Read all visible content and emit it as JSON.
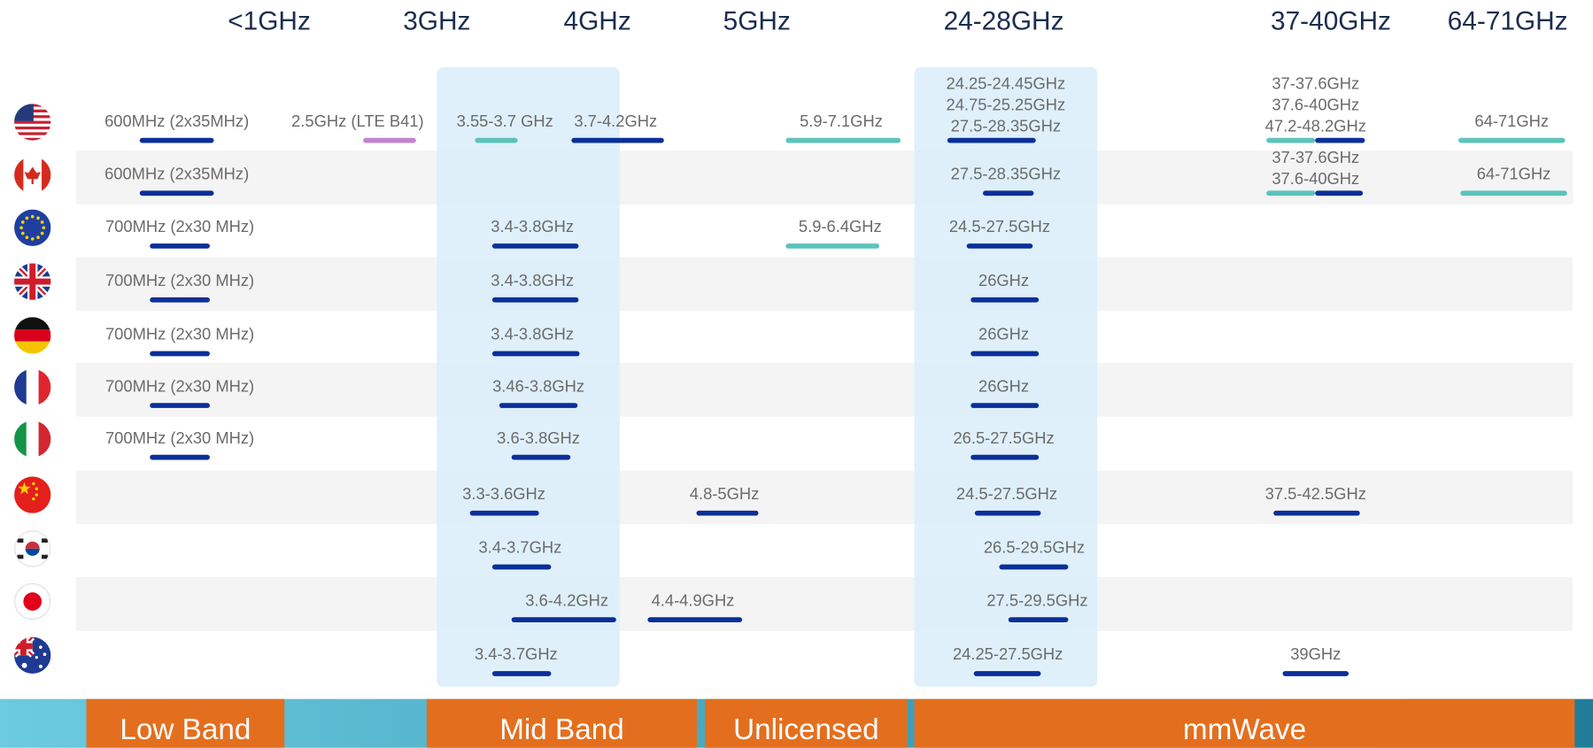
{
  "header": {
    "labels": [
      "<1GHz",
      "3GHz",
      "4GHz",
      "5GHz",
      "24-28GHz",
      "37-40GHz",
      "64-71GHz"
    ]
  },
  "rows": [
    {
      "bands": [
        {
          "text": [
            "600MHz (2x35MHz)"
          ],
          "colors": [
            "#0b2f9a"
          ]
        },
        {
          "text": [
            "2.5GHz (LTE B41)"
          ],
          "colors": [
            "#c384cf"
          ]
        },
        {
          "text": [
            "3.55-3.7 GHz"
          ],
          "colors": [
            "#5cc3bb"
          ]
        },
        {
          "text": [
            "3.7-4.2GHz"
          ],
          "colors": [
            "#0b2f9a"
          ]
        },
        {
          "text": [
            "5.9-7.1GHz"
          ],
          "colors": [
            "#5cc3bb"
          ]
        },
        {
          "text": [
            "24.25-24.45GHz",
            "24.75-25.25GHz",
            "27.5-28.35GHz"
          ],
          "colors": [
            "#0b2f9a"
          ]
        },
        {
          "text": [
            "37-37.6GHz",
            "37.6-40GHz",
            "47.2-48.2GHz"
          ],
          "colors": [
            "#5cc3bb",
            "#0b2f9a"
          ]
        },
        {
          "text": [
            "64-71GHz"
          ],
          "colors": [
            "#5cc3bb"
          ]
        }
      ]
    },
    {
      "bands": [
        {
          "text": [
            "600MHz (2x35MHz)"
          ],
          "colors": [
            "#0b2f9a"
          ]
        },
        {
          "text": [
            "27.5-28.35GHz"
          ],
          "colors": [
            "#0b2f9a"
          ]
        },
        {
          "text": [
            "37-37.6GHz",
            "37.6-40GHz"
          ],
          "colors": [
            "#5cc3bb",
            "#0b2f9a"
          ]
        },
        {
          "text": [
            "64-71GHz"
          ],
          "colors": [
            "#5cc3bb"
          ]
        }
      ]
    },
    {
      "bands": [
        {
          "text": [
            "700MHz (2x30 MHz)"
          ],
          "colors": [
            "#0b2f9a"
          ]
        },
        {
          "text": [
            "3.4-3.8GHz"
          ],
          "colors": [
            "#0b2f9a"
          ]
        },
        {
          "text": [
            "5.9-6.4GHz"
          ],
          "colors": [
            "#5cc3bb"
          ]
        },
        {
          "text": [
            "24.5-27.5GHz"
          ],
          "colors": [
            "#0b2f9a"
          ]
        }
      ]
    },
    {
      "bands": [
        {
          "text": [
            "700MHz (2x30 MHz)"
          ],
          "colors": [
            "#0b2f9a"
          ]
        },
        {
          "text": [
            "3.4-3.8GHz"
          ],
          "colors": [
            "#0b2f9a"
          ]
        },
        {
          "text": [
            "26GHz"
          ],
          "colors": [
            "#0b2f9a"
          ]
        }
      ]
    },
    {
      "bands": [
        {
          "text": [
            "700MHz (2x30 MHz)"
          ],
          "colors": [
            "#0b2f9a"
          ]
        },
        {
          "text": [
            "3.4-3.8GHz"
          ],
          "colors": [
            "#0b2f9a"
          ]
        },
        {
          "text": [
            "26GHz"
          ],
          "colors": [
            "#0b2f9a"
          ]
        }
      ]
    },
    {
      "bands": [
        {
          "text": [
            "700MHz (2x30 MHz)"
          ],
          "colors": [
            "#0b2f9a"
          ]
        },
        {
          "text": [
            "3.46-3.8GHz"
          ],
          "colors": [
            "#0b2f9a"
          ]
        },
        {
          "text": [
            "26GHz"
          ],
          "colors": [
            "#0b2f9a"
          ]
        }
      ]
    },
    {
      "bands": [
        {
          "text": [
            "700MHz (2x30 MHz)"
          ],
          "colors": [
            "#0b2f9a"
          ]
        },
        {
          "text": [
            "3.6-3.8GHz"
          ],
          "colors": [
            "#0b2f9a"
          ]
        },
        {
          "text": [
            "26.5-27.5GHz"
          ],
          "colors": [
            "#0b2f9a"
          ]
        }
      ]
    },
    {
      "bands": [
        {
          "text": [
            "3.3-3.6GHz"
          ],
          "colors": [
            "#0b2f9a"
          ]
        },
        {
          "text": [
            "4.8-5GHz"
          ],
          "colors": [
            "#0b2f9a"
          ]
        },
        {
          "text": [
            "24.5-27.5GHz"
          ],
          "colors": [
            "#0b2f9a"
          ]
        },
        {
          "text": [
            "37.5-42.5GHz"
          ],
          "colors": [
            "#0b2f9a"
          ]
        }
      ]
    },
    {
      "bands": [
        {
          "text": [
            "3.4-3.7GHz"
          ],
          "colors": [
            "#0b2f9a"
          ]
        },
        {
          "text": [
            "26.5-29.5GHz"
          ],
          "colors": [
            "#0b2f9a"
          ]
        }
      ]
    },
    {
      "bands": [
        {
          "text": [
            "3.6-4.2GHz"
          ],
          "colors": [
            "#0b2f9a"
          ]
        },
        {
          "text": [
            "4.4-4.9GHz"
          ],
          "colors": [
            "#0b2f9a"
          ]
        },
        {
          "text": [
            "27.5-29.5GHz"
          ],
          "colors": [
            "#0b2f9a"
          ]
        }
      ]
    },
    {
      "bands": [
        {
          "text": [
            "3.4-3.7GHz"
          ],
          "colors": [
            "#0b2f9a"
          ]
        },
        {
          "text": [
            "24.25-27.5GHz"
          ],
          "colors": [
            "#0b2f9a"
          ]
        },
        {
          "text": [
            "39GHz"
          ],
          "colors": [
            "#0b2f9a"
          ]
        }
      ]
    }
  ],
  "footer": {
    "categories": [
      "Low Band",
      "Mid Band",
      "Unlicensed",
      "mmWave"
    ]
  }
}
